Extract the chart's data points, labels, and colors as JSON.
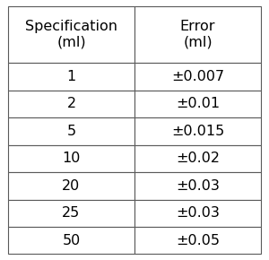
{
  "col1_header_line1": "Specification",
  "col1_header_line2": "(ml)",
  "col2_header_line1": "Error",
  "col2_header_line2": "(ml)",
  "rows": [
    [
      "1",
      "±0.007"
    ],
    [
      "2",
      "±0.01"
    ],
    [
      "5",
      "±0.015"
    ],
    [
      "10",
      "±0.02"
    ],
    [
      "20",
      "±0.03"
    ],
    [
      "25",
      "±0.03"
    ],
    [
      "50",
      "±0.05"
    ]
  ],
  "bg_color": "#ffffff",
  "border_color": "#5a5a5a",
  "text_color": "#000000",
  "font_size": 11.5,
  "header_font_size": 11.5
}
